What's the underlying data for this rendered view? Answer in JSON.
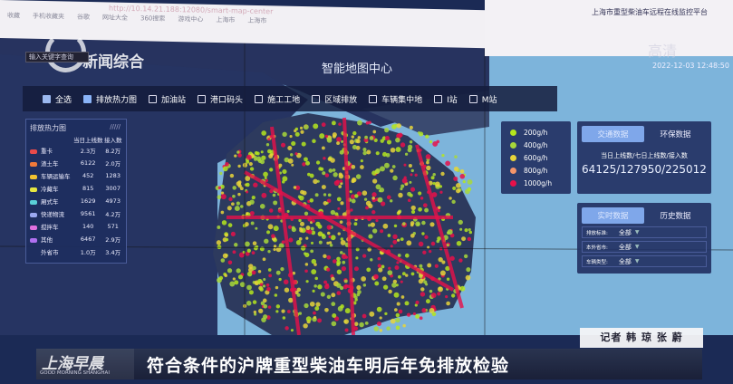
{
  "browser": {
    "url": "http://10.14.21.188:12080/smart-map-center",
    "bookmarks": [
      "收藏",
      "手机收藏夹",
      "谷歌",
      "网址大全",
      "360搜索",
      "游戏中心",
      "上海市",
      "上海市"
    ]
  },
  "platform_title": "上海市重型柴油车远程在线监控平台",
  "watermark": "高清",
  "datetime": "2022-12-03 12:48:50",
  "channel_logo": "新闻综合",
  "search_placeholder": "输入关键字查询",
  "map_title": "智能地图中心",
  "layers": [
    {
      "label": "全选",
      "state": "partial"
    },
    {
      "label": "排放热力图",
      "state": "checked"
    },
    {
      "label": "加油站",
      "state": "unchecked"
    },
    {
      "label": "港口码头",
      "state": "unchecked"
    },
    {
      "label": "施工工地",
      "state": "unchecked"
    },
    {
      "label": "区域排放",
      "state": "unchecked"
    },
    {
      "label": "车辆集中地",
      "state": "unchecked"
    },
    {
      "label": "I站",
      "state": "unchecked"
    },
    {
      "label": "M站",
      "state": "unchecked"
    }
  ],
  "heat_panel": {
    "title": "排放热力图",
    "headers": [
      "",
      "当日上线数",
      "接入数"
    ],
    "rows": [
      {
        "name": "重卡",
        "online": "2.3万",
        "access": "8.2万",
        "color": "#e84a4a"
      },
      {
        "name": "渣土车",
        "online": "6122",
        "access": "2.0万",
        "color": "#f07a3a"
      },
      {
        "name": "车辆运输车",
        "online": "452",
        "access": "1283",
        "color": "#f2c230"
      },
      {
        "name": "冷藏车",
        "online": "815",
        "access": "3007",
        "color": "#e6e640"
      },
      {
        "name": "厢式车",
        "online": "1629",
        "access": "4973",
        "color": "#5ad0d8"
      },
      {
        "name": "快递物流",
        "online": "9561",
        "access": "4.2万",
        "color": "#9aa8f0"
      },
      {
        "name": "搅拌车",
        "online": "140",
        "access": "571",
        "color": "#e070e0"
      },
      {
        "name": "其他",
        "online": "6467",
        "access": "2.9万",
        "color": "#b070f0"
      },
      {
        "name": "外省市",
        "online": "1.0万",
        "access": "3.4万",
        "color": ""
      }
    ]
  },
  "legend": [
    {
      "label": "200g/h",
      "color": "#b5e61d"
    },
    {
      "label": "400g/h",
      "color": "#a8d83a"
    },
    {
      "label": "600g/h",
      "color": "#e8d53a"
    },
    {
      "label": "800g/h",
      "color": "#f4956a"
    },
    {
      "label": "1000g/h",
      "color": "#e8104a"
    }
  ],
  "traffic_card": {
    "tabs": [
      "交通数据",
      "环保数据"
    ],
    "active": 0,
    "stat_label": "当日上线数/七日上线数/接入数",
    "stat_value": "64125/127950/225012"
  },
  "realtime_card": {
    "tabs": [
      "实时数据",
      "历史数据"
    ],
    "active": 0,
    "filters": [
      {
        "label": "排放标准:",
        "value": "全部"
      },
      {
        "label": "本外省市:",
        "value": "全部"
      },
      {
        "label": "车辆类型:",
        "value": "全部"
      }
    ]
  },
  "reporter": "记者 韩 琼 张 蔚",
  "show_name": "上海早晨",
  "show_name_en": "GOOD MORNING SHANGHAI",
  "headline": "符合条件的沪牌重型柴油车明后年免排放检验"
}
